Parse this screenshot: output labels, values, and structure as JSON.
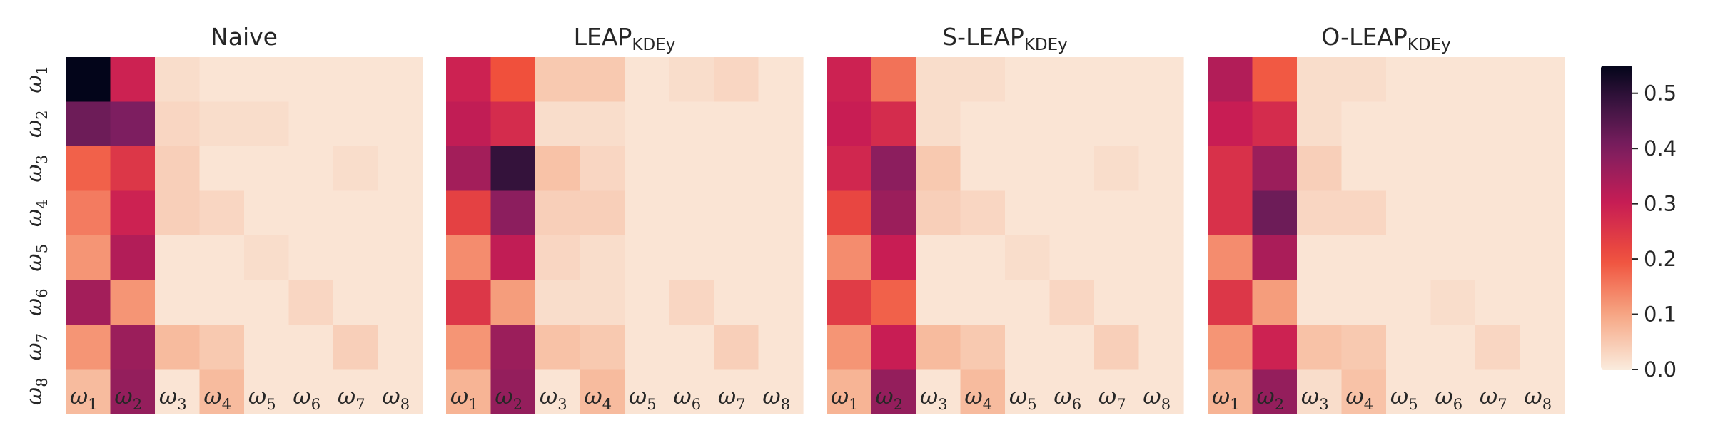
{
  "chart_data": {
    "type": "heatmap",
    "row_labels": [
      {
        "base": "ω",
        "sub": "1"
      },
      {
        "base": "ω",
        "sub": "2"
      },
      {
        "base": "ω",
        "sub": "3"
      },
      {
        "base": "ω",
        "sub": "4"
      },
      {
        "base": "ω",
        "sub": "5"
      },
      {
        "base": "ω",
        "sub": "6"
      },
      {
        "base": "ω",
        "sub": "7"
      },
      {
        "base": "ω",
        "sub": "8"
      }
    ],
    "col_labels": [
      {
        "base": "ω",
        "sub": "1"
      },
      {
        "base": "ω",
        "sub": "2"
      },
      {
        "base": "ω",
        "sub": "3"
      },
      {
        "base": "ω",
        "sub": "4"
      },
      {
        "base": "ω",
        "sub": "5"
      },
      {
        "base": "ω",
        "sub": "6"
      },
      {
        "base": "ω",
        "sub": "7"
      },
      {
        "base": "ω",
        "sub": "8"
      }
    ],
    "colorbar": {
      "min": 0.0,
      "max": 0.55,
      "ticks": [
        "0.0",
        "0.1",
        "0.2",
        "0.3",
        "0.4",
        "0.5"
      ],
      "colormap": "rocket_r"
    },
    "panels": [
      {
        "title": "Naive",
        "title_sub": "",
        "values": [
          [
            0.55,
            0.29,
            0.02,
            0.01,
            0.01,
            0.01,
            0.01,
            0.01
          ],
          [
            0.42,
            0.4,
            0.03,
            0.02,
            0.02,
            0.01,
            0.01,
            0.01
          ],
          [
            0.18,
            0.25,
            0.04,
            0.01,
            0.01,
            0.01,
            0.02,
            0.01
          ],
          [
            0.15,
            0.29,
            0.04,
            0.03,
            0.01,
            0.01,
            0.01,
            0.01
          ],
          [
            0.12,
            0.33,
            0.01,
            0.01,
            0.02,
            0.01,
            0.01,
            0.01
          ],
          [
            0.35,
            0.12,
            0.01,
            0.01,
            0.01,
            0.03,
            0.01,
            0.01
          ],
          [
            0.12,
            0.36,
            0.07,
            0.05,
            0.01,
            0.01,
            0.04,
            0.01
          ],
          [
            0.07,
            0.37,
            0.01,
            0.07,
            0.01,
            0.01,
            0.01,
            0.01
          ]
        ]
      },
      {
        "title": "LEAP",
        "title_sub": "KDEy",
        "values": [
          [
            0.29,
            0.2,
            0.05,
            0.05,
            0.01,
            0.02,
            0.03,
            0.01
          ],
          [
            0.31,
            0.27,
            0.02,
            0.02,
            0.01,
            0.01,
            0.01,
            0.01
          ],
          [
            0.35,
            0.49,
            0.06,
            0.03,
            0.01,
            0.01,
            0.01,
            0.01
          ],
          [
            0.23,
            0.38,
            0.04,
            0.04,
            0.01,
            0.01,
            0.01,
            0.01
          ],
          [
            0.13,
            0.31,
            0.03,
            0.02,
            0.01,
            0.01,
            0.01,
            0.01
          ],
          [
            0.25,
            0.11,
            0.02,
            0.02,
            0.01,
            0.03,
            0.01,
            0.01
          ],
          [
            0.12,
            0.36,
            0.06,
            0.05,
            0.01,
            0.01,
            0.04,
            0.01
          ],
          [
            0.08,
            0.37,
            0.01,
            0.07,
            0.01,
            0.01,
            0.01,
            0.01
          ]
        ]
      },
      {
        "title": "S-LEAP",
        "title_sub": "KDEy",
        "values": [
          [
            0.29,
            0.16,
            0.02,
            0.02,
            0.01,
            0.01,
            0.01,
            0.01
          ],
          [
            0.3,
            0.27,
            0.02,
            0.01,
            0.01,
            0.01,
            0.01,
            0.01
          ],
          [
            0.28,
            0.38,
            0.05,
            0.01,
            0.01,
            0.01,
            0.02,
            0.01
          ],
          [
            0.22,
            0.36,
            0.04,
            0.03,
            0.01,
            0.01,
            0.01,
            0.01
          ],
          [
            0.13,
            0.3,
            0.01,
            0.01,
            0.02,
            0.01,
            0.01,
            0.01
          ],
          [
            0.24,
            0.18,
            0.01,
            0.01,
            0.01,
            0.03,
            0.01,
            0.01
          ],
          [
            0.12,
            0.3,
            0.07,
            0.05,
            0.01,
            0.01,
            0.04,
            0.01
          ],
          [
            0.08,
            0.37,
            0.01,
            0.07,
            0.01,
            0.01,
            0.01,
            0.01
          ]
        ]
      },
      {
        "title": "O-LEAP",
        "title_sub": "KDEy",
        "values": [
          [
            0.33,
            0.19,
            0.02,
            0.02,
            0.01,
            0.01,
            0.01,
            0.01
          ],
          [
            0.3,
            0.27,
            0.02,
            0.01,
            0.01,
            0.01,
            0.01,
            0.01
          ],
          [
            0.26,
            0.36,
            0.04,
            0.01,
            0.01,
            0.01,
            0.01,
            0.01
          ],
          [
            0.26,
            0.42,
            0.03,
            0.03,
            0.01,
            0.01,
            0.01,
            0.01
          ],
          [
            0.13,
            0.34,
            0.01,
            0.01,
            0.01,
            0.01,
            0.01,
            0.01
          ],
          [
            0.25,
            0.11,
            0.01,
            0.01,
            0.01,
            0.02,
            0.01,
            0.01
          ],
          [
            0.12,
            0.29,
            0.06,
            0.05,
            0.01,
            0.01,
            0.03,
            0.01
          ],
          [
            0.08,
            0.37,
            0.02,
            0.06,
            0.01,
            0.01,
            0.01,
            0.01
          ]
        ]
      }
    ]
  }
}
